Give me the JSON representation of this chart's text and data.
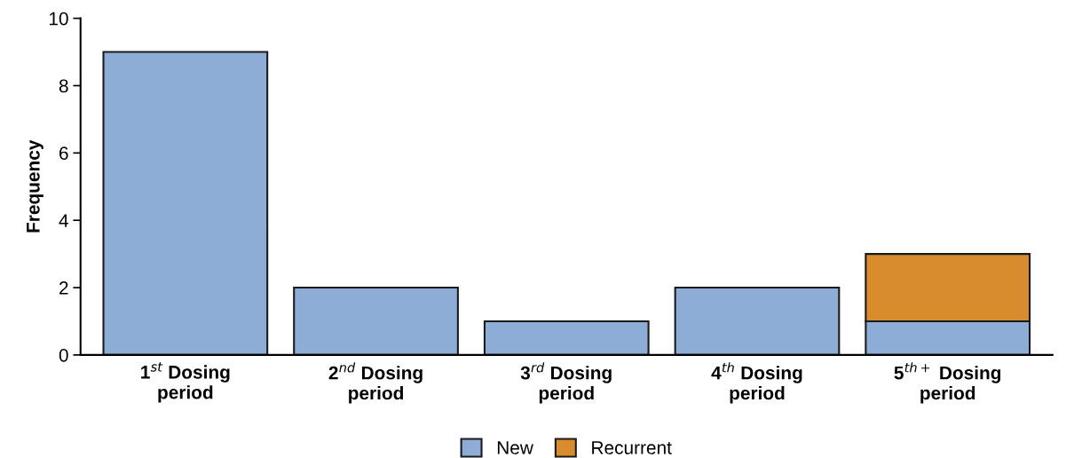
{
  "chart_data": {
    "type": "bar",
    "stacked": true,
    "ylabel": "Frequency",
    "categories": [
      "1$^{st}$ Dosing\nperiod",
      "2$^{nd}$ Dosing\nperiod",
      "3$^{rd}$ Dosing\nperiod",
      "4$^{th}$ Dosing\nperiod",
      "5$^{th+}$ Dosing\nperiod"
    ],
    "series": [
      {
        "name": "New",
        "color": "#8eadd6",
        "values": [
          9,
          2,
          1,
          2,
          1
        ]
      },
      {
        "name": "Recurrent",
        "color": "#d98c2e",
        "values": [
          null,
          null,
          null,
          null,
          2
        ]
      }
    ],
    "ylim": [
      0,
      10
    ],
    "yticks": [
      0,
      2,
      4,
      6,
      8,
      10
    ],
    "grid": false,
    "legend": "bottom"
  }
}
